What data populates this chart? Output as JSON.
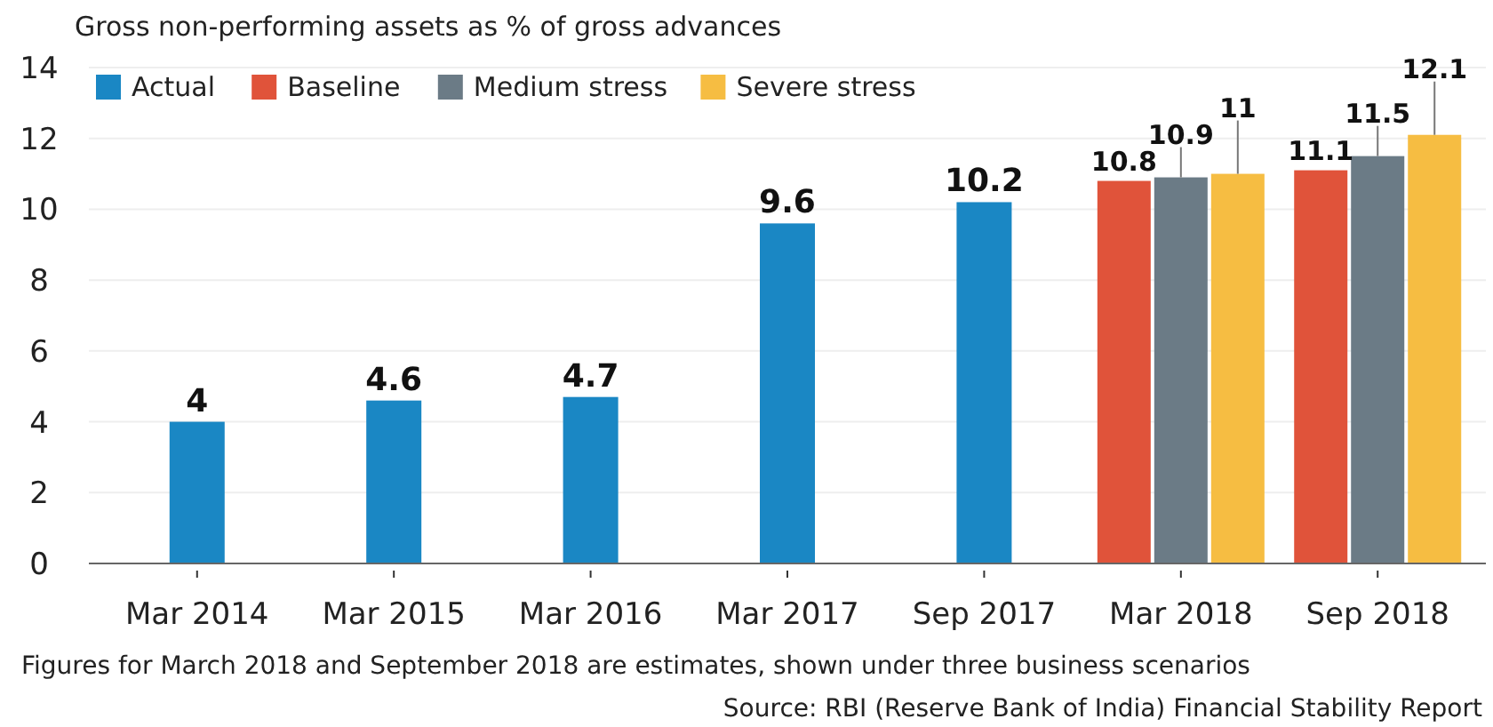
{
  "chart_data": {
    "type": "bar",
    "title": "Gross non-performing assets as % of gross advances",
    "categories": [
      "Mar 2014",
      "Mar 2015",
      "Mar 2016",
      "Mar 2017",
      "Sep 2017",
      "Mar 2018",
      "Sep 2018"
    ],
    "series": [
      {
        "name": "Actual",
        "color": "#1a87c4",
        "values": [
          4,
          4.6,
          4.7,
          9.6,
          10.2,
          null,
          null
        ],
        "value_labels": [
          "4",
          "4.6",
          "4.7",
          "9.6",
          "10.2",
          null,
          null
        ]
      },
      {
        "name": "Baseline",
        "color": "#e0533a",
        "values": [
          null,
          null,
          null,
          null,
          null,
          10.8,
          11.1
        ],
        "value_labels": [
          null,
          null,
          null,
          null,
          null,
          "10.8",
          "11.1"
        ]
      },
      {
        "name": "Medium stress",
        "color": "#6b7b86",
        "values": [
          null,
          null,
          null,
          null,
          null,
          10.9,
          11.5
        ],
        "value_labels": [
          null,
          null,
          null,
          null,
          null,
          "10.9",
          "11.5"
        ]
      },
      {
        "name": "Severe stress",
        "color": "#f6bd42",
        "values": [
          null,
          null,
          null,
          null,
          null,
          11,
          12.1
        ],
        "value_labels": [
          null,
          null,
          null,
          null,
          null,
          "11",
          "12.1"
        ]
      }
    ],
    "ylim": [
      0,
      14
    ],
    "yticks": [
      0,
      2,
      4,
      6,
      8,
      10,
      12,
      14
    ],
    "grid": "y",
    "legend": "top left",
    "annotations": [
      "Figures for March 2018 and September 2018 are estimates, shown under three business scenarios",
      "Source: RBI (Reserve Bank of India) Financial Stability Report"
    ]
  }
}
